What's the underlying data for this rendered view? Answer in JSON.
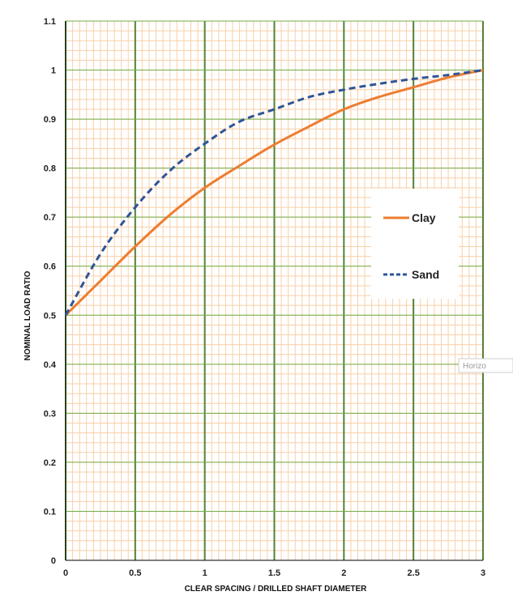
{
  "chart_data": {
    "type": "line",
    "title": "",
    "xlabel": "CLEAR SPACING / DRILLED SHAFT DIAMETER",
    "ylabel": "NOMINAL LOAD RATIO",
    "xlim": [
      0,
      3
    ],
    "ylim": [
      0,
      1.1
    ],
    "x_ticks": [
      "0",
      "0.5",
      "1",
      "1.5",
      "2",
      "2.5",
      "3"
    ],
    "y_ticks": [
      "0",
      "0.1",
      "0.2",
      "0.3",
      "0.4",
      "0.5",
      "0.6",
      "0.7",
      "0.8",
      "0.9",
      "1",
      "1.1"
    ],
    "grid": true,
    "legend_position": "right",
    "series": [
      {
        "name": "Clay",
        "color": "#ed7d31",
        "style": "solid",
        "x": [
          0,
          0.25,
          0.5,
          0.75,
          1.0,
          1.25,
          1.5,
          1.75,
          2.0,
          2.25,
          2.5,
          2.75,
          3.0
        ],
        "y": [
          0.5,
          0.57,
          0.64,
          0.705,
          0.76,
          0.805,
          0.848,
          0.885,
          0.92,
          0.945,
          0.965,
          0.985,
          1.0
        ]
      },
      {
        "name": "Sand",
        "color": "#2f5597",
        "style": "dashed",
        "x": [
          0,
          0.25,
          0.5,
          0.75,
          1.0,
          1.25,
          1.5,
          1.75,
          2.0,
          2.25,
          2.5,
          2.75,
          3.0
        ],
        "y": [
          0.5,
          0.625,
          0.72,
          0.795,
          0.85,
          0.895,
          0.92,
          0.945,
          0.96,
          0.972,
          0.982,
          0.99,
          1.0
        ]
      }
    ],
    "stray_label": "Horizo"
  },
  "colors": {
    "minor_grid": "#f9cfa8",
    "major_vertical_grid": "#548235",
    "major_horizontal_grid": "#70ad47",
    "axis": "#000000"
  }
}
